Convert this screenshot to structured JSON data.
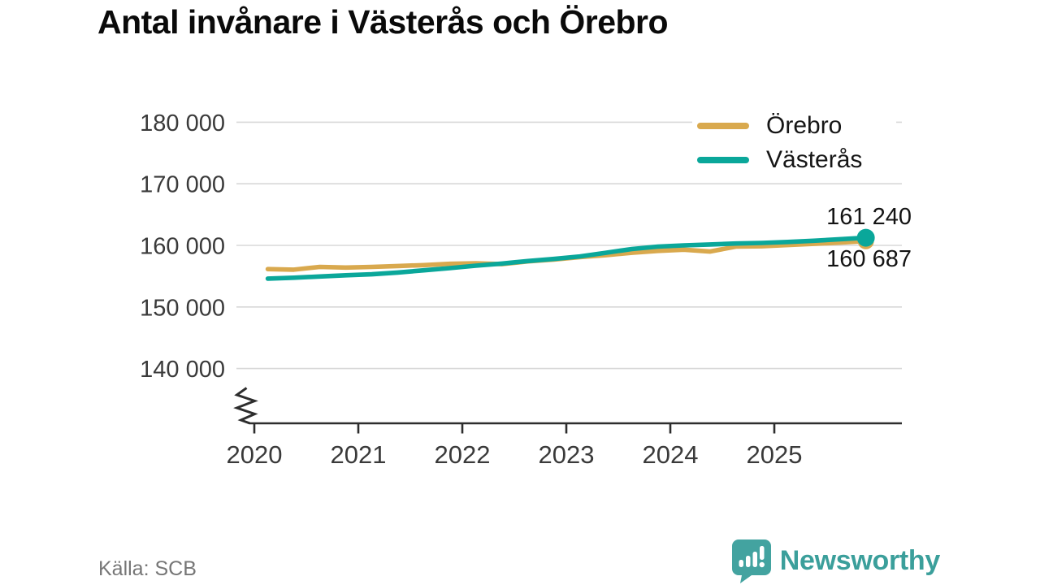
{
  "title": "Antal invånare i Västerås och Örebro",
  "source": "Källa: SCB",
  "branding": {
    "logo_text": "Newsworthy",
    "logo_icon": "bar-chart-speech-bubble",
    "brand_color": "#3b9f9b"
  },
  "legend": {
    "items": [
      {
        "label": "Örebro",
        "color": "#d9a94e"
      },
      {
        "label": "Västerås",
        "color": "#0aa79a"
      }
    ]
  },
  "colors": {
    "grid": "#d8d8d8",
    "axis": "#2d2d2d",
    "axis_text": "#3a3a3a",
    "orebro": "#d9a94e",
    "vasteras": "#0aa79a"
  },
  "chart_data": {
    "type": "line",
    "title": "Antal invånare i Västerås och Örebro",
    "xlabel": "",
    "ylabel": "",
    "grid": "horizontal",
    "legend_position": "top-right",
    "axis_break": true,
    "ylim": [
      140000,
      180000
    ],
    "y_ticks": [
      {
        "value": 180000,
        "label": "180 000"
      },
      {
        "value": 170000,
        "label": "170 000"
      },
      {
        "value": 160000,
        "label": "160 000"
      },
      {
        "value": 150000,
        "label": "150 000"
      },
      {
        "value": 140000,
        "label": "140 000"
      }
    ],
    "x_ticks": [
      {
        "value": 2020,
        "label": "2020"
      },
      {
        "value": 2021,
        "label": "2021"
      },
      {
        "value": 2022,
        "label": "2022"
      },
      {
        "value": 2023,
        "label": "2023"
      },
      {
        "value": 2024,
        "label": "2024"
      },
      {
        "value": 2025,
        "label": "2025"
      }
    ],
    "x": [
      2020.13,
      2020.38,
      2020.63,
      2020.88,
      2021.13,
      2021.38,
      2021.63,
      2021.88,
      2022.13,
      2022.38,
      2022.63,
      2022.88,
      2023.13,
      2023.38,
      2023.63,
      2023.88,
      2024.13,
      2024.38,
      2024.63,
      2024.88,
      2025.13,
      2025.38,
      2025.63,
      2025.88
    ],
    "series": [
      {
        "name": "Örebro",
        "color": "#d9a94e",
        "end_label": "160 687",
        "end_value": 160687,
        "values": [
          156150,
          156050,
          156500,
          156400,
          156500,
          156650,
          156800,
          157000,
          157100,
          156950,
          157400,
          157700,
          158100,
          158400,
          158800,
          159100,
          159300,
          159000,
          159800,
          159850,
          160050,
          160250,
          160450,
          160687
        ]
      },
      {
        "name": "Västerås",
        "color": "#0aa79a",
        "end_label": "161 240",
        "end_value": 161240,
        "values": [
          154600,
          154750,
          154950,
          155150,
          155300,
          155600,
          155950,
          156300,
          156700,
          157050,
          157450,
          157800,
          158200,
          158800,
          159400,
          159800,
          160000,
          160150,
          160300,
          160400,
          160550,
          160750,
          161000,
          161240
        ]
      }
    ]
  }
}
